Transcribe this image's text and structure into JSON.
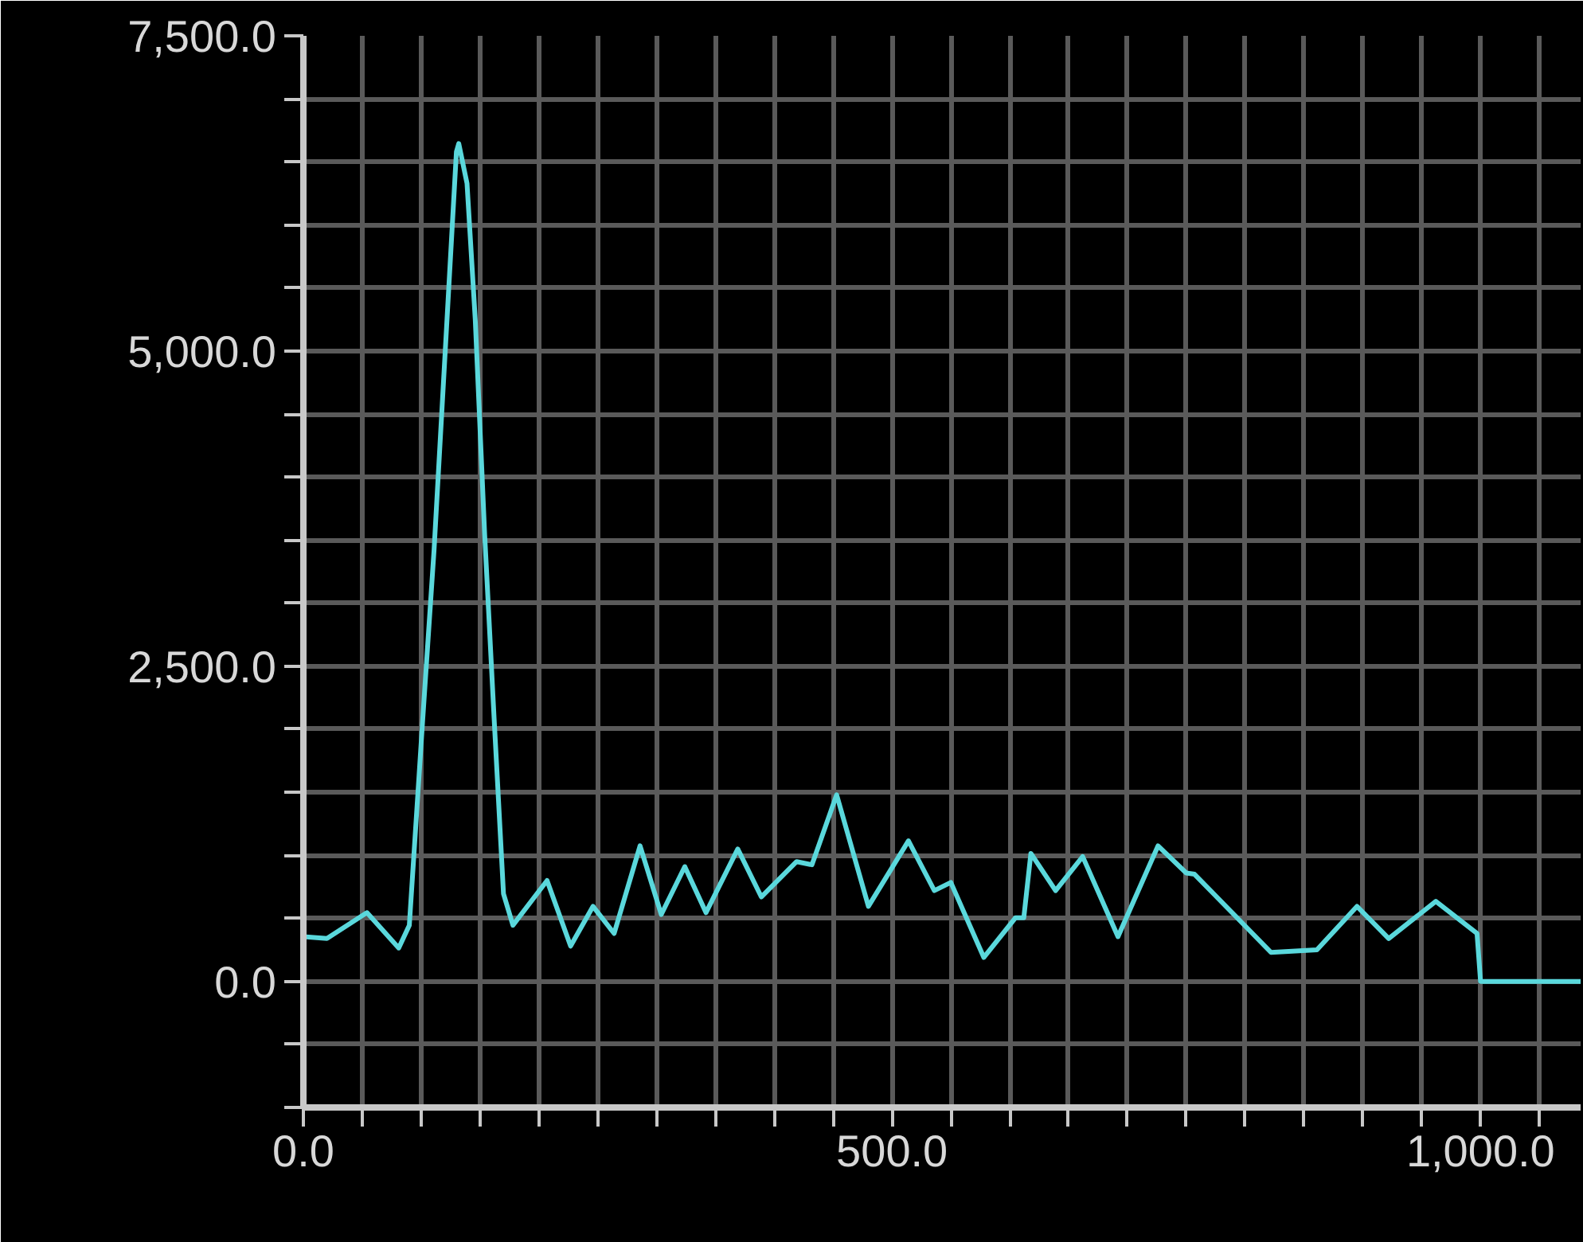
{
  "chart_data": {
    "type": "line",
    "x": [
      0,
      20,
      54,
      81,
      90,
      101,
      111,
      122,
      130,
      132,
      139,
      146,
      154,
      162,
      170,
      178,
      207,
      227,
      246,
      264,
      286,
      304,
      324,
      342,
      369,
      389,
      419,
      432,
      453,
      480,
      514,
      536,
      550,
      578,
      605,
      612,
      618,
      639,
      662,
      692,
      726,
      750,
      757,
      822,
      861,
      895,
      922,
      962,
      997,
      1000,
      1085
    ],
    "series": [
      {
        "color": "#5ad8dc",
        "values": [
          355,
          340,
          545,
          265,
          445,
          2025,
          3420,
          5250,
          6580,
          6645,
          6330,
          5250,
          3545,
          2090,
          695,
          445,
          800,
          280,
          595,
          380,
          1075,
          530,
          910,
          545,
          1050,
          670,
          950,
          925,
          1480,
          595,
          1115,
          720,
          785,
          190,
          505,
          505,
          1015,
          720,
          990,
          355,
          1075,
          860,
          850,
          230,
          250,
          595,
          340,
          635,
          380,
          0,
          0
        ]
      }
    ],
    "xlim": [
      0,
      1085
    ],
    "ylim": [
      -1000,
      7500
    ],
    "xticks": [
      {
        "value": 0,
        "label": "0.0"
      },
      {
        "value": 50,
        "label": null
      },
      {
        "value": 100,
        "label": null
      },
      {
        "value": 150,
        "label": null
      },
      {
        "value": 200,
        "label": null
      },
      {
        "value": 250,
        "label": null
      },
      {
        "value": 300,
        "label": null
      },
      {
        "value": 350,
        "label": null
      },
      {
        "value": 400,
        "label": null
      },
      {
        "value": 450,
        "label": null
      },
      {
        "value": 500,
        "label": "500.0"
      },
      {
        "value": 550,
        "label": null
      },
      {
        "value": 600,
        "label": null
      },
      {
        "value": 650,
        "label": null
      },
      {
        "value": 700,
        "label": null
      },
      {
        "value": 750,
        "label": null
      },
      {
        "value": 800,
        "label": null
      },
      {
        "value": 850,
        "label": null
      },
      {
        "value": 900,
        "label": null
      },
      {
        "value": 950,
        "label": null
      },
      {
        "value": 1000,
        "label": "1,000.0"
      },
      {
        "value": 1050,
        "label": null
      }
    ],
    "yticks": [
      {
        "value": -1000,
        "label": null
      },
      {
        "value": -500,
        "label": null
      },
      {
        "value": 0,
        "label": "0.0"
      },
      {
        "value": 500,
        "label": null
      },
      {
        "value": 1000,
        "label": null
      },
      {
        "value": 1500,
        "label": null
      },
      {
        "value": 2000,
        "label": null
      },
      {
        "value": 2500,
        "label": "2,500.0"
      },
      {
        "value": 3000,
        "label": null
      },
      {
        "value": 3500,
        "label": null
      },
      {
        "value": 4000,
        "label": null
      },
      {
        "value": 4500,
        "label": null
      },
      {
        "value": 5000,
        "label": "5,000.0"
      },
      {
        "value": 5500,
        "label": null
      },
      {
        "value": 6000,
        "label": null
      },
      {
        "value": 6500,
        "label": null
      },
      {
        "value": 7000,
        "label": null
      },
      {
        "value": 7500,
        "label": "7,500.0"
      }
    ],
    "grid": true,
    "marker": "none",
    "line_style": "solid"
  }
}
